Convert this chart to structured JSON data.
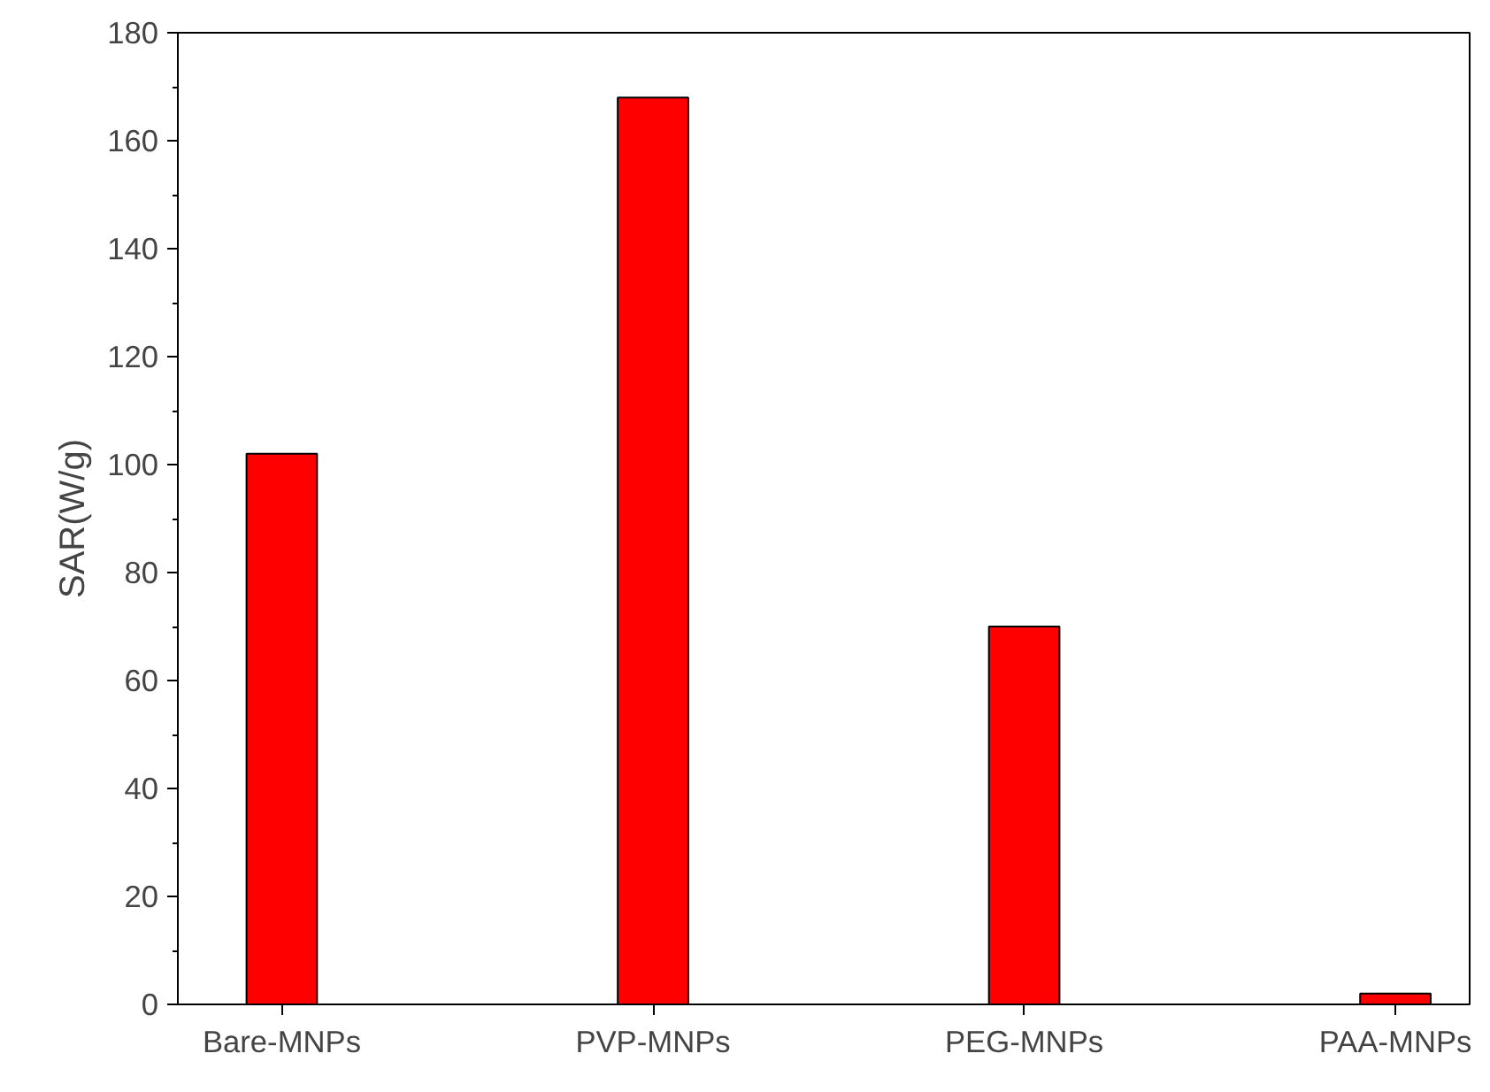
{
  "chart_data": {
    "type": "bar",
    "ylabel": "SAR(W/g)",
    "categories": [
      "Bare-MNPs",
      "PVP-MNPs",
      "PEG-MNPs",
      "PAA-MNPs"
    ],
    "values": [
      102,
      168,
      70,
      2
    ],
    "color": "#ff0000",
    "ylim": [
      0,
      180
    ],
    "yticks": [
      0,
      20,
      40,
      60,
      80,
      100,
      120,
      140,
      160,
      180
    ],
    "grid": false
  }
}
